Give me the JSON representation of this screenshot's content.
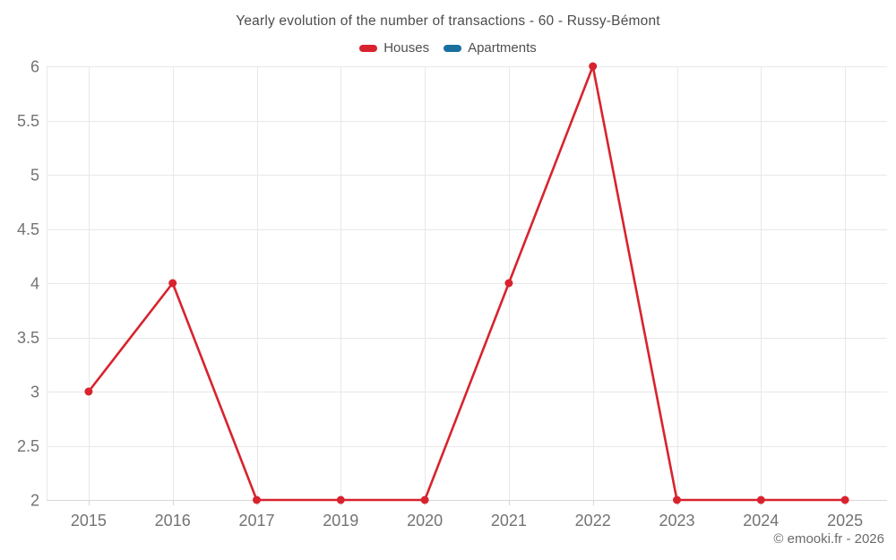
{
  "chart_data": {
    "type": "line",
    "title": "Yearly evolution of the number of transactions - 60 - Russy-Bémont",
    "categories": [
      "2015",
      "2016",
      "2017",
      "2019",
      "2020",
      "2021",
      "2022",
      "2023",
      "2024",
      "2025"
    ],
    "series": [
      {
        "name": "Houses",
        "color": "#d8232e",
        "values": [
          3,
          4,
          2,
          2,
          2,
          4,
          6,
          2,
          2,
          2
        ]
      },
      {
        "name": "Apartments",
        "color": "#196f9f",
        "values": []
      }
    ],
    "ylim": [
      2,
      6
    ],
    "yticks": [
      2,
      2.5,
      3,
      3.5,
      4,
      4.5,
      5,
      5.5,
      6
    ],
    "xlabel": "",
    "ylabel": "",
    "grid": true,
    "legend_position": "top",
    "marker": "circle"
  },
  "footer": {
    "text": "© emooki.fr - 2026"
  },
  "styles": {
    "background": "#ffffff",
    "grid_color": "#e8e8e8",
    "axis_color": "#d6d6d6",
    "label_color": "#737373",
    "title_color": "#4d4d4d"
  }
}
